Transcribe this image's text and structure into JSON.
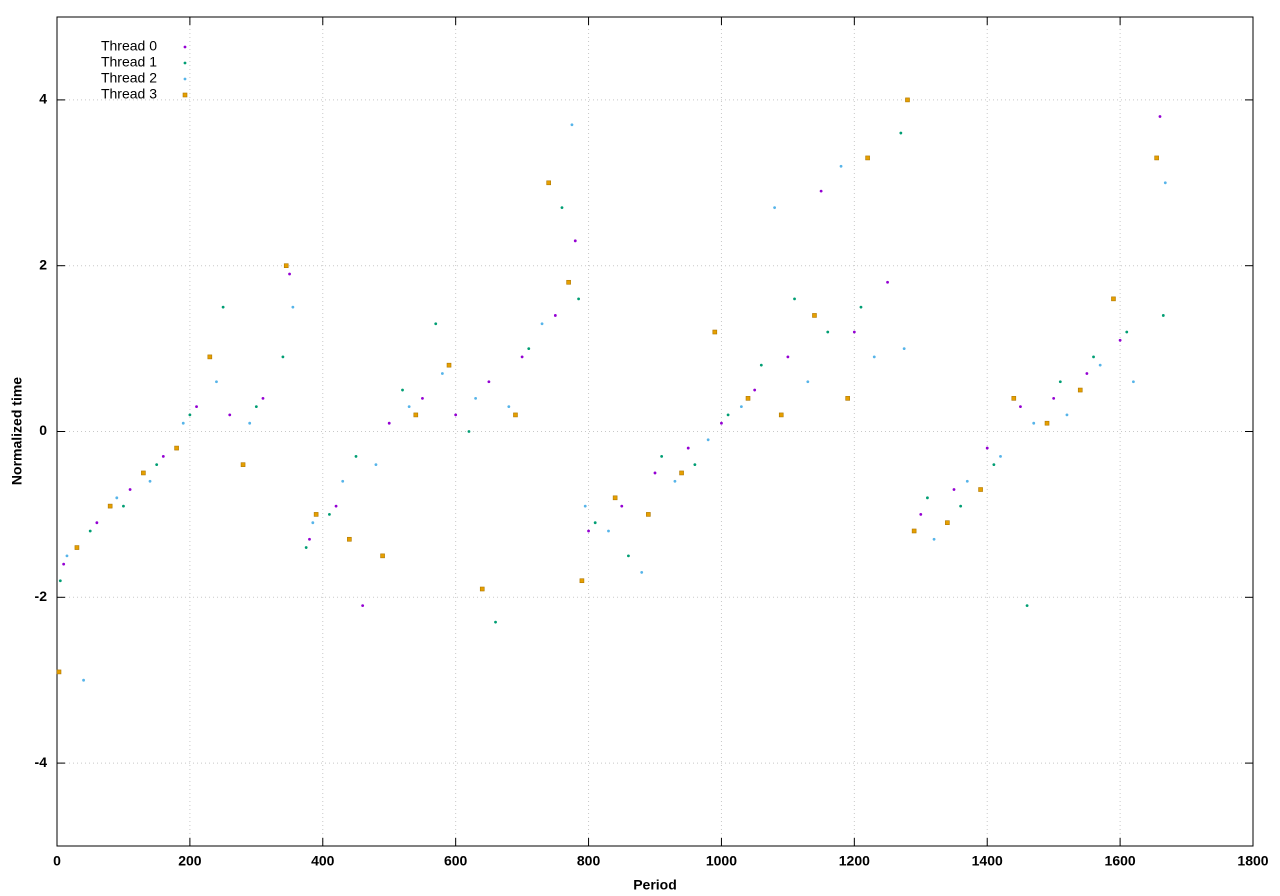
{
  "chart_data": {
    "type": "scatter",
    "xlabel": "Period",
    "ylabel": "Normalized time",
    "xlim": [
      0,
      1800
    ],
    "ylim": [
      -5,
      5
    ],
    "xticks": [
      0,
      200,
      400,
      600,
      800,
      1000,
      1200,
      1400,
      1600,
      1800
    ],
    "yticks": [
      -4,
      -2,
      0,
      2,
      4
    ],
    "grid": true,
    "legend": "top-left",
    "series": [
      {
        "name": "Thread 0",
        "color": "#9400d3",
        "marker": "dot",
        "x": [
          10,
          60,
          110,
          160,
          210,
          260,
          310,
          350,
          380,
          420,
          460,
          500,
          550,
          600,
          650,
          700,
          750,
          780,
          800,
          850,
          900,
          950,
          1000,
          1050,
          1100,
          1150,
          1200,
          1250,
          1300,
          1350,
          1400,
          1450,
          1500,
          1550,
          1600,
          1660
        ],
        "values": [
          -1.6,
          -1.1,
          -0.7,
          -0.3,
          0.3,
          0.2,
          0.4,
          1.9,
          -1.3,
          -0.9,
          -2.1,
          0.1,
          0.4,
          0.2,
          0.6,
          0.9,
          1.4,
          2.3,
          -1.2,
          -0.9,
          -0.5,
          -0.2,
          0.1,
          0.5,
          0.9,
          2.9,
          1.2,
          1.8,
          -1.0,
          -0.7,
          -0.2,
          0.3,
          0.4,
          0.7,
          1.1,
          3.8
        ]
      },
      {
        "name": "Thread 1",
        "color": "#009e73",
        "marker": "dot",
        "x": [
          5,
          50,
          100,
          150,
          200,
          250,
          300,
          340,
          375,
          410,
          450,
          520,
          570,
          620,
          660,
          710,
          760,
          785,
          810,
          860,
          910,
          960,
          1010,
          1060,
          1110,
          1160,
          1210,
          1270,
          1310,
          1360,
          1410,
          1460,
          1510,
          1560,
          1610,
          1665
        ],
        "values": [
          -1.8,
          -1.2,
          -0.9,
          -0.4,
          0.2,
          1.5,
          0.3,
          0.9,
          -1.4,
          -1.0,
          -0.3,
          0.5,
          1.3,
          0.0,
          -2.3,
          1.0,
          2.7,
          1.6,
          -1.1,
          -1.5,
          -0.3,
          -0.4,
          0.2,
          0.8,
          1.6,
          1.2,
          1.5,
          3.6,
          -0.8,
          -0.9,
          -0.4,
          -2.1,
          0.6,
          0.9,
          1.2,
          1.4
        ]
      },
      {
        "name": "Thread 2",
        "color": "#56b4e9",
        "marker": "dot",
        "x": [
          15,
          40,
          90,
          140,
          190,
          240,
          290,
          355,
          385,
          430,
          480,
          530,
          580,
          630,
          680,
          730,
          775,
          795,
          830,
          880,
          930,
          980,
          1030,
          1080,
          1130,
          1180,
          1230,
          1275,
          1320,
          1370,
          1420,
          1470,
          1520,
          1570,
          1620,
          1668
        ],
        "values": [
          -1.5,
          -3.0,
          -0.8,
          -0.6,
          0.1,
          0.6,
          0.1,
          1.5,
          -1.1,
          -0.6,
          -0.4,
          0.3,
          0.7,
          0.4,
          0.3,
          1.3,
          3.7,
          -0.9,
          -1.2,
          -1.7,
          -0.6,
          -0.1,
          0.3,
          2.7,
          0.6,
          3.2,
          0.9,
          1.0,
          -1.3,
          -0.6,
          -0.3,
          0.1,
          0.2,
          0.8,
          0.6,
          3.0
        ]
      },
      {
        "name": "Thread 3",
        "color": "#e69f00",
        "marker": "square",
        "x": [
          3,
          30,
          80,
          130,
          180,
          230,
          280,
          345,
          390,
          440,
          490,
          540,
          590,
          640,
          690,
          740,
          770,
          790,
          840,
          890,
          940,
          990,
          1040,
          1090,
          1140,
          1190,
          1220,
          1280,
          1290,
          1340,
          1390,
          1440,
          1490,
          1540,
          1590,
          1655
        ],
        "values": [
          -2.9,
          -1.4,
          -0.9,
          -0.5,
          -0.2,
          0.9,
          -0.4,
          2.0,
          -1.0,
          -1.3,
          -1.5,
          0.2,
          0.8,
          -1.9,
          0.2,
          3.0,
          1.8,
          -1.8,
          -0.8,
          -1.0,
          -0.5,
          1.2,
          0.4,
          0.2,
          1.4,
          0.4,
          3.3,
          4.0,
          -1.2,
          -1.1,
          -0.7,
          0.4,
          0.1,
          0.5,
          1.6,
          3.3
        ]
      }
    ]
  }
}
